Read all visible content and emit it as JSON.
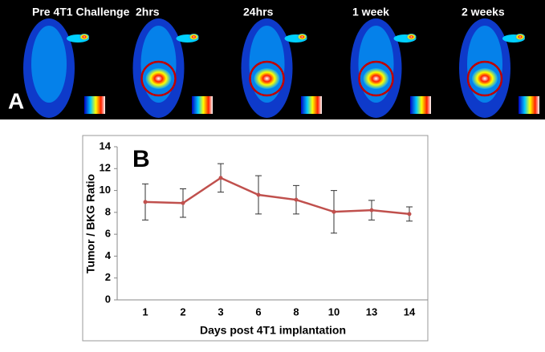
{
  "panel_a": {
    "label": "A",
    "captions": [
      "Pre 4T1 Challenge",
      "2hrs",
      "24hrs",
      "1 week",
      "2 weeks"
    ]
  },
  "chart_data": {
    "type": "line",
    "panel_label": "B",
    "x_label": "Days post 4T1 implantation",
    "y_label": "Tumor / BKG Ratio",
    "categories": [
      "1",
      "2",
      "3",
      "6",
      "8",
      "10",
      "13",
      "14"
    ],
    "series": [
      {
        "name": "Tumor / BKG Ratio",
        "color": "#c0504d",
        "values": [
          8.95,
          8.85,
          11.15,
          9.6,
          9.15,
          8.05,
          8.2,
          7.85
        ],
        "errors": [
          1.65,
          1.3,
          1.3,
          1.75,
          1.3,
          1.95,
          0.9,
          0.65
        ]
      }
    ],
    "ylim": [
      0,
      14
    ],
    "yticks": [
      0,
      2,
      4,
      6,
      8,
      10,
      12,
      14
    ],
    "grid": false
  }
}
